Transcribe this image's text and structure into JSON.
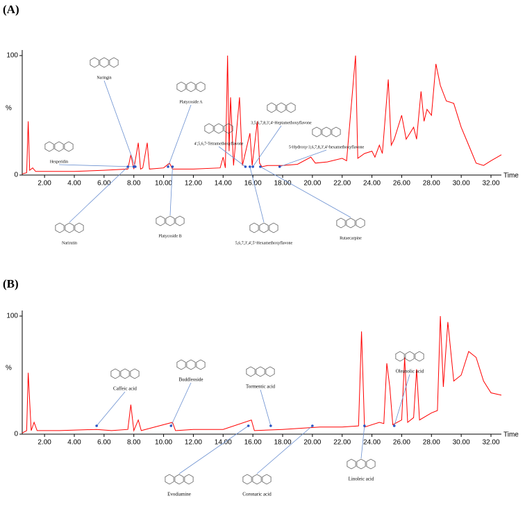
{
  "chart_data": [
    {
      "type": "line",
      "panel": "(A)",
      "ylabel": "%",
      "xlabel": "Time",
      "xlim": [
        0.5,
        32.7
      ],
      "ylim": [
        0,
        100
      ],
      "yticks": [
        0,
        100
      ],
      "xticks": [
        {
          "value": 2,
          "label": "2.00"
        },
        {
          "value": 4,
          "label": "4.00"
        },
        {
          "value": 6,
          "label": "6.00"
        },
        {
          "value": 8,
          "label": "8.00"
        },
        {
          "value": 10,
          "label": "10.00"
        },
        {
          "value": 12,
          "label": "12.00"
        },
        {
          "value": 14,
          "label": "14.00"
        },
        {
          "value": 16,
          "label": "16.00"
        },
        {
          "value": 18,
          "label": "18.00"
        },
        {
          "value": 20,
          "label": "20.00"
        },
        {
          "value": 22,
          "label": "22.00"
        },
        {
          "value": 24,
          "label": "24.00"
        },
        {
          "value": 26,
          "label": "26.00"
        },
        {
          "value": 28,
          "label": "28.00"
        },
        {
          "value": 30,
          "label": "30.00"
        },
        {
          "value": 32,
          "label": "32.00"
        }
      ],
      "series": [
        {
          "color": "#ff0000",
          "x": [
            0.5,
            0.8,
            0.9,
            1.0,
            1.2,
            1.4,
            2.5,
            4.0,
            6.0,
            7.6,
            7.8,
            8.0,
            8.3,
            8.45,
            8.6,
            8.9,
            9.05,
            10.0,
            10.4,
            10.6,
            12.0,
            13.8,
            14.0,
            14.15,
            14.3,
            14.4,
            14.5,
            14.7,
            15.1,
            15.3,
            15.8,
            15.95,
            16.3,
            16.45,
            16.6,
            17.0,
            18.0,
            19.0,
            19.9,
            20.2,
            21.0,
            22.0,
            22.3,
            22.9,
            23.05,
            23.5,
            24.0,
            24.2,
            24.5,
            24.7,
            25.1,
            25.3,
            25.5,
            26.0,
            26.3,
            26.8,
            27.0,
            27.3,
            27.5,
            27.7,
            28.0,
            28.3,
            28.6,
            29.0,
            29.5,
            30.0,
            30.5,
            31.0,
            31.5,
            32.0,
            32.7
          ],
          "values": [
            1,
            2,
            45,
            4,
            6,
            3,
            3,
            3,
            4,
            5,
            17,
            5,
            27,
            5,
            6,
            27,
            5,
            6,
            10,
            5,
            5,
            6,
            15,
            6,
            100,
            20,
            65,
            8,
            65,
            8,
            35,
            8,
            45,
            10,
            7,
            8,
            8,
            9,
            15,
            10,
            11,
            14,
            12,
            100,
            14,
            18,
            20,
            15,
            25,
            18,
            80,
            25,
            30,
            50,
            30,
            40,
            30,
            70,
            45,
            55,
            50,
            93,
            75,
            62,
            60,
            40,
            25,
            10,
            8,
            12,
            17
          ]
        }
      ],
      "annotations": [
        {
          "text": "Naringin",
          "x": 8.1
        },
        {
          "text": "Platycoside A",
          "x": 10.3
        },
        {
          "text": "Hesperidin",
          "x": 8.0
        },
        {
          "text": "3,5,6,7,8,3',4'-Heptamethoxyflavone",
          "x": 16.0
        },
        {
          "text": "4',5,6,7-Tetramethoxyflavone",
          "x": 15.5
        },
        {
          "text": "5-Hydroxy-3,6,7,8,3',4'-hexamethoxyflavone",
          "x": 17.8
        },
        {
          "text": "Narirutin",
          "x": 7.6
        },
        {
          "text": "Platycoside B",
          "x": 10.6
        },
        {
          "text": "5,6,7,3',4',5'-Hexamethoxyflavone",
          "x": 15.8
        },
        {
          "text": "Rutaecarpine",
          "x": 16.5
        }
      ]
    },
    {
      "type": "line",
      "panel": "(B)",
      "ylabel": "%",
      "xlabel": "Time",
      "xlim": [
        0.5,
        32.7
      ],
      "ylim": [
        0,
        100
      ],
      "yticks": [
        0,
        100
      ],
      "xticks": [
        {
          "value": 2,
          "label": "2.00"
        },
        {
          "value": 4,
          "label": "4.00"
        },
        {
          "value": 6,
          "label": "6.00"
        },
        {
          "value": 8,
          "label": "8.00"
        },
        {
          "value": 10,
          "label": "10.00"
        },
        {
          "value": 12,
          "label": "12.00"
        },
        {
          "value": 14,
          "label": "14.00"
        },
        {
          "value": 16,
          "label": "16.00"
        },
        {
          "value": 18,
          "label": "18.00"
        },
        {
          "value": 20,
          "label": "20.00"
        },
        {
          "value": 22,
          "label": "22.00"
        },
        {
          "value": 24,
          "label": "24.00"
        },
        {
          "value": 26,
          "label": "26.00"
        },
        {
          "value": 28,
          "label": "28.00"
        },
        {
          "value": 30,
          "label": "30.00"
        },
        {
          "value": 32,
          "label": "32.00"
        }
      ],
      "series": [
        {
          "color": "#ff0000",
          "x": [
            0.5,
            0.8,
            0.9,
            1.1,
            1.3,
            1.5,
            3.0,
            5.5,
            6.5,
            7.6,
            7.8,
            8.0,
            8.3,
            8.5,
            10.6,
            10.8,
            12.0,
            14.0,
            15.9,
            16.1,
            18.0,
            20.5,
            22.0,
            23.1,
            23.3,
            23.5,
            24.5,
            24.8,
            25.0,
            25.2,
            25.4,
            26.0,
            26.2,
            26.4,
            26.8,
            27.0,
            27.2,
            28.0,
            28.4,
            28.6,
            28.8,
            29.1,
            29.5,
            30.0,
            30.5,
            31.0,
            31.5,
            32.0,
            32.7
          ],
          "values": [
            1,
            3,
            52,
            3,
            10,
            3,
            3,
            4,
            3,
            4,
            25,
            3,
            12,
            3,
            10,
            3,
            4,
            4,
            12,
            3,
            4,
            6,
            6,
            7,
            87,
            6,
            10,
            9,
            60,
            40,
            8,
            12,
            65,
            10,
            14,
            55,
            12,
            18,
            20,
            100,
            40,
            95,
            45,
            50,
            70,
            65,
            45,
            35,
            33
          ]
        }
      ],
      "annotations": [
        {
          "text": "Caffeic acid",
          "x": 5.5
        },
        {
          "text": "Buddleoside",
          "x": 10.5
        },
        {
          "text": "Tormentic acid",
          "x": 17.2
        },
        {
          "text": "Oleanolic acid",
          "x": 25.5
        },
        {
          "text": "Evodiamine",
          "x": 15.7
        },
        {
          "text": "Coronaric acid",
          "x": 20.0
        },
        {
          "text": "Linoleic acid",
          "x": 23.5
        }
      ]
    }
  ]
}
